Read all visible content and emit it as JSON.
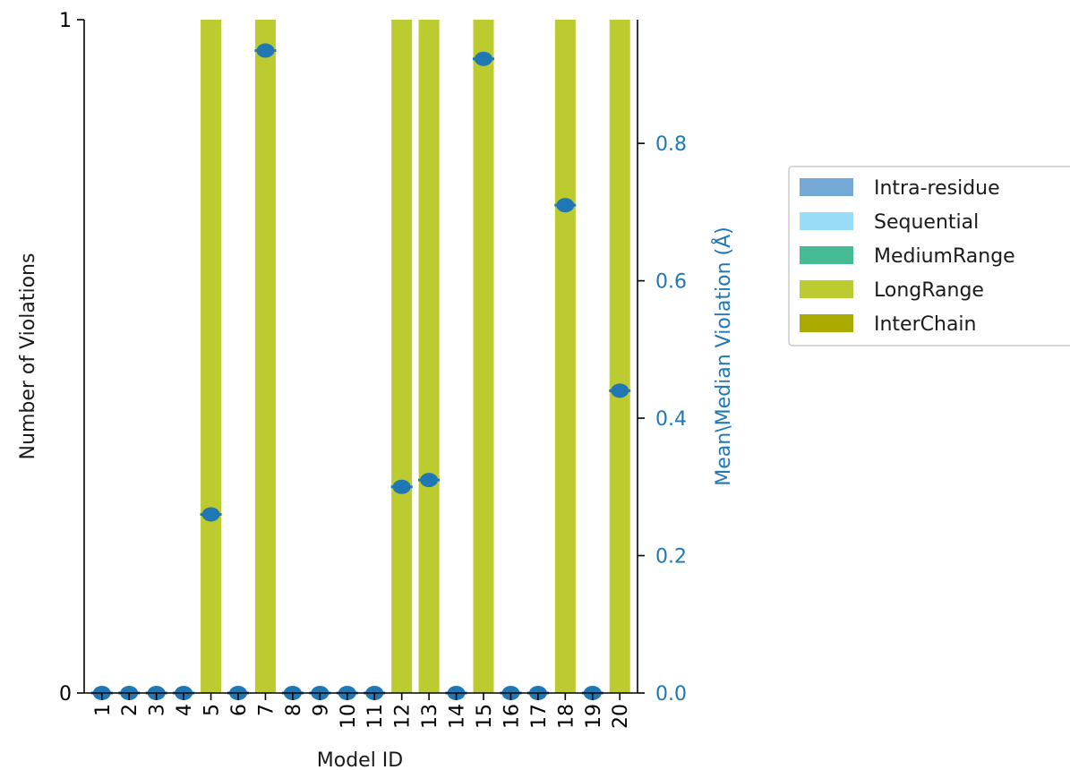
{
  "chart_data": {
    "type": "bar",
    "xlabel": "Model ID",
    "ylabel_left": "Number of Violations",
    "ylabel_right": "Mean\\Median Violation (Å)",
    "ylim_left": [
      0,
      1
    ],
    "yticks_left": [
      "0",
      "1"
    ],
    "ylim_right": [
      0,
      0.98
    ],
    "yticks_right": [
      "0.0",
      "0.2",
      "0.4",
      "0.6",
      "0.8"
    ],
    "right_axis_color": "#1f77b4",
    "categories": [
      "1",
      "2",
      "3",
      "4",
      "5",
      "6",
      "7",
      "8",
      "9",
      "10",
      "11",
      "12",
      "13",
      "14",
      "15",
      "16",
      "17",
      "18",
      "19",
      "20"
    ],
    "series": [
      {
        "name": "Intra-residue",
        "color": "#74a9d8",
        "values": [
          0,
          0,
          0,
          0,
          0,
          0,
          0,
          0,
          0,
          0,
          0,
          0,
          0,
          0,
          0,
          0,
          0,
          0,
          0,
          0
        ]
      },
      {
        "name": "Sequential",
        "color": "#98dcf8",
        "values": [
          0,
          0,
          0,
          0,
          0,
          0,
          0,
          0,
          0,
          0,
          0,
          0,
          0,
          0,
          0,
          0,
          0,
          0,
          0,
          0
        ]
      },
      {
        "name": "MediumRange",
        "color": "#46bb95",
        "values": [
          0,
          0,
          0,
          0,
          0,
          0,
          0,
          0,
          0,
          0,
          0,
          0,
          0,
          0,
          0,
          0,
          0,
          0,
          0,
          0
        ]
      },
      {
        "name": "LongRange",
        "color": "#bccc30",
        "values": [
          0,
          0,
          0,
          0,
          1,
          0,
          1,
          0,
          0,
          0,
          0,
          1,
          1,
          0,
          1,
          0,
          0,
          1,
          0,
          1
        ]
      },
      {
        "name": "InterChain",
        "color": "#aaaa00",
        "values": [
          0,
          0,
          0,
          0,
          0,
          0,
          0,
          0,
          0,
          0,
          0,
          0,
          0,
          0,
          0,
          0,
          0,
          0,
          0,
          0
        ]
      }
    ],
    "violation_markers": {
      "color": "#1f77b4",
      "values": [
        0,
        0,
        0,
        0,
        0.26,
        0,
        0.935,
        0,
        0,
        0,
        0,
        0.3,
        0.31,
        0,
        0.923,
        0,
        0,
        0.71,
        0,
        0.44
      ]
    },
    "legend_position": "right"
  }
}
